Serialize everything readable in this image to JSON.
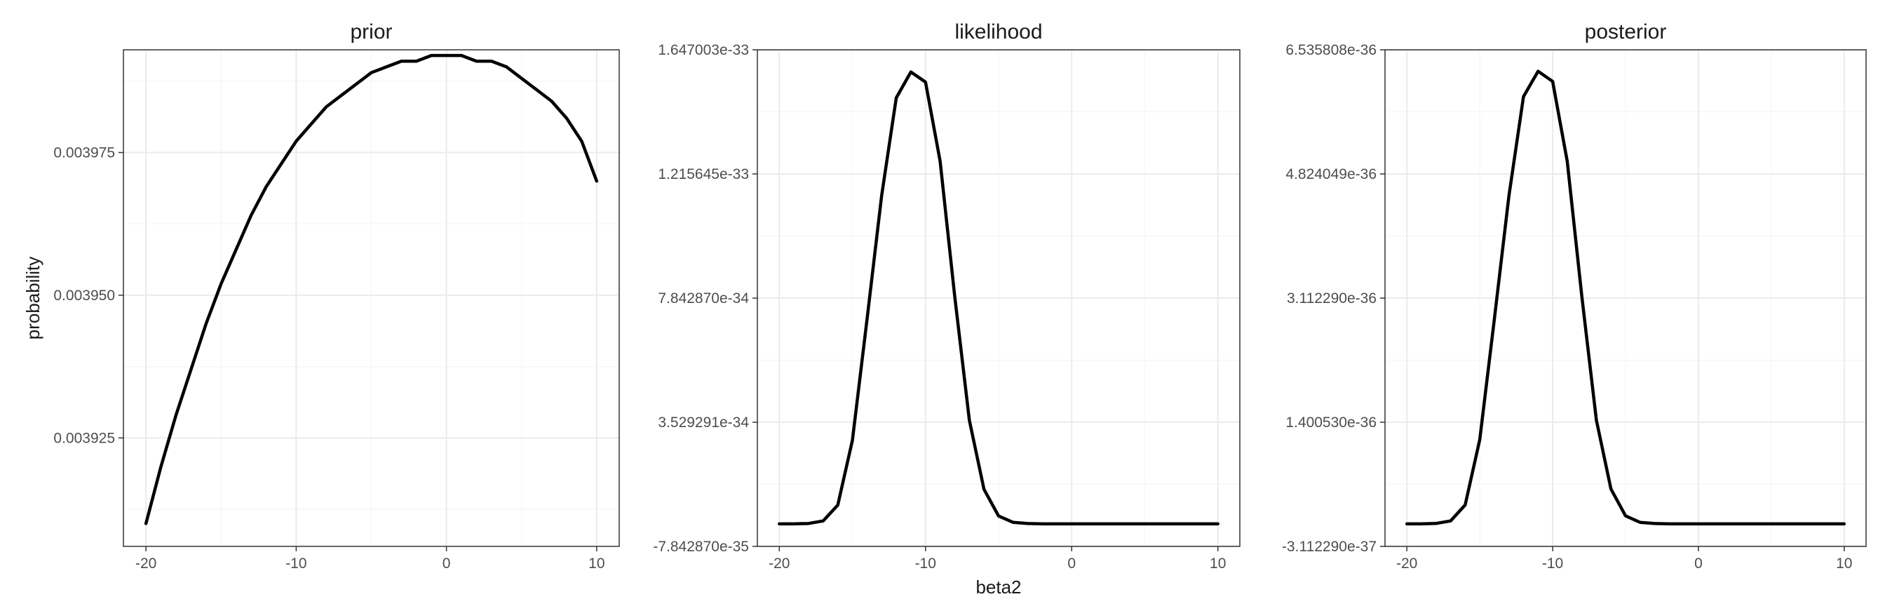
{
  "chart_data": [
    {
      "type": "line",
      "title": "prior",
      "ylabel": "probability",
      "xlim": [
        -21.5,
        11.5
      ],
      "ylim": [
        0.003906,
        0.003993
      ],
      "x_ticks": [
        -20,
        -10,
        0,
        10
      ],
      "x_tick_labels": [
        "-20",
        "-10",
        "0",
        "10"
      ],
      "y_ticks": [
        0.003925,
        0.00395,
        0.003975
      ],
      "y_tick_labels": [
        "0.003925",
        "0.003950",
        "0.003975"
      ],
      "grid": true,
      "series": [
        {
          "x": [
            -20,
            -19,
            -18,
            -17,
            -16,
            -15,
            -14,
            -13,
            -12,
            -11,
            -10,
            -9,
            -8,
            -7,
            -6,
            -5,
            -4,
            -3,
            -2,
            -1,
            0,
            1,
            2,
            3,
            4,
            5,
            6,
            7,
            8,
            9,
            10
          ],
          "values": [
            0.00391,
            0.00392,
            0.003929,
            0.003937,
            0.003945,
            0.003952,
            0.003958,
            0.003964,
            0.003969,
            0.003973,
            0.003977,
            0.00398,
            0.003983,
            0.003985,
            0.003987,
            0.003989,
            0.00399,
            0.003991,
            0.003991,
            0.003992,
            0.003992,
            0.003992,
            0.003991,
            0.003991,
            0.00399,
            0.003988,
            0.003986,
            0.003984,
            0.003981,
            0.003977,
            0.00397
          ]
        }
      ]
    },
    {
      "type": "line",
      "title": "likelihood",
      "xlabel": "beta2",
      "xlim": [
        -21.5,
        11.5
      ],
      "ylim": [
        -7.84287e-35,
        1.647003e-33
      ],
      "x_ticks": [
        -20,
        -10,
        0,
        10
      ],
      "x_tick_labels": [
        "-20",
        "-10",
        "0",
        "10"
      ],
      "y_ticks": [
        -7.84287e-35,
        3.529291e-34,
        7.84287e-34,
        1.215645e-33,
        1.647003e-33
      ],
      "y_tick_labels": [
        "-7.842870e-35",
        "3.529291e-34",
        "7.842870e-34",
        "1.215645e-33",
        "1.647003e-33"
      ],
      "grid": true,
      "series": [
        {
          "x": [
            -20,
            -19,
            -18,
            -17,
            -16,
            -15,
            -14,
            -13,
            -12,
            -11,
            -10,
            -9,
            -8,
            -7,
            -6,
            -5,
            -4,
            -3,
            -2,
            -1,
            0,
            2,
            4,
            6,
            8,
            10
          ],
          "values": [
            0,
            0,
            1.2e-36,
            1e-35,
            6.5e-35,
            2.9e-34,
            7.1e-34,
            1.14e-33,
            1.48e-33,
            1.57e-33,
            1.535e-33,
            1.26e-33,
            7.9e-34,
            3.6e-34,
            1.2e-34,
            2.7e-35,
            5e-36,
            1e-36,
            0,
            0,
            0,
            0,
            0,
            0,
            0,
            0
          ]
        }
      ]
    },
    {
      "type": "line",
      "title": "posterior",
      "xlim": [
        -21.5,
        11.5
      ],
      "ylim": [
        -3.11229e-37,
        6.535808e-36
      ],
      "x_ticks": [
        -20,
        -10,
        0,
        10
      ],
      "x_tick_labels": [
        "-20",
        "-10",
        "0",
        "10"
      ],
      "y_ticks": [
        -3.11229e-37,
        1.40053e-36,
        3.11229e-36,
        4.824049e-36,
        6.535808e-36
      ],
      "y_tick_labels": [
        "-3.112290e-37",
        "1.400530e-36",
        "3.112290e-36",
        "4.824049e-36",
        "6.535808e-36"
      ],
      "grid": true,
      "series": [
        {
          "x": [
            -20,
            -19,
            -18,
            -17,
            -16,
            -15,
            -14,
            -13,
            -12,
            -11,
            -10,
            -9,
            -8,
            -7,
            -6,
            -5,
            -4,
            -3,
            -2,
            -1,
            0,
            2,
            4,
            6,
            8,
            10
          ],
          "values": [
            0,
            0,
            5e-39,
            4e-38,
            2.6e-37,
            1.16e-36,
            2.82e-36,
            4.52e-36,
            5.89e-36,
            6.24e-36,
            6.1e-36,
            5e-36,
            3.14e-36,
            1.43e-36,
            4.8e-37,
            1.1e-37,
            2e-38,
            4e-39,
            0,
            0,
            0,
            0,
            0,
            0,
            0,
            0
          ]
        }
      ]
    }
  ]
}
